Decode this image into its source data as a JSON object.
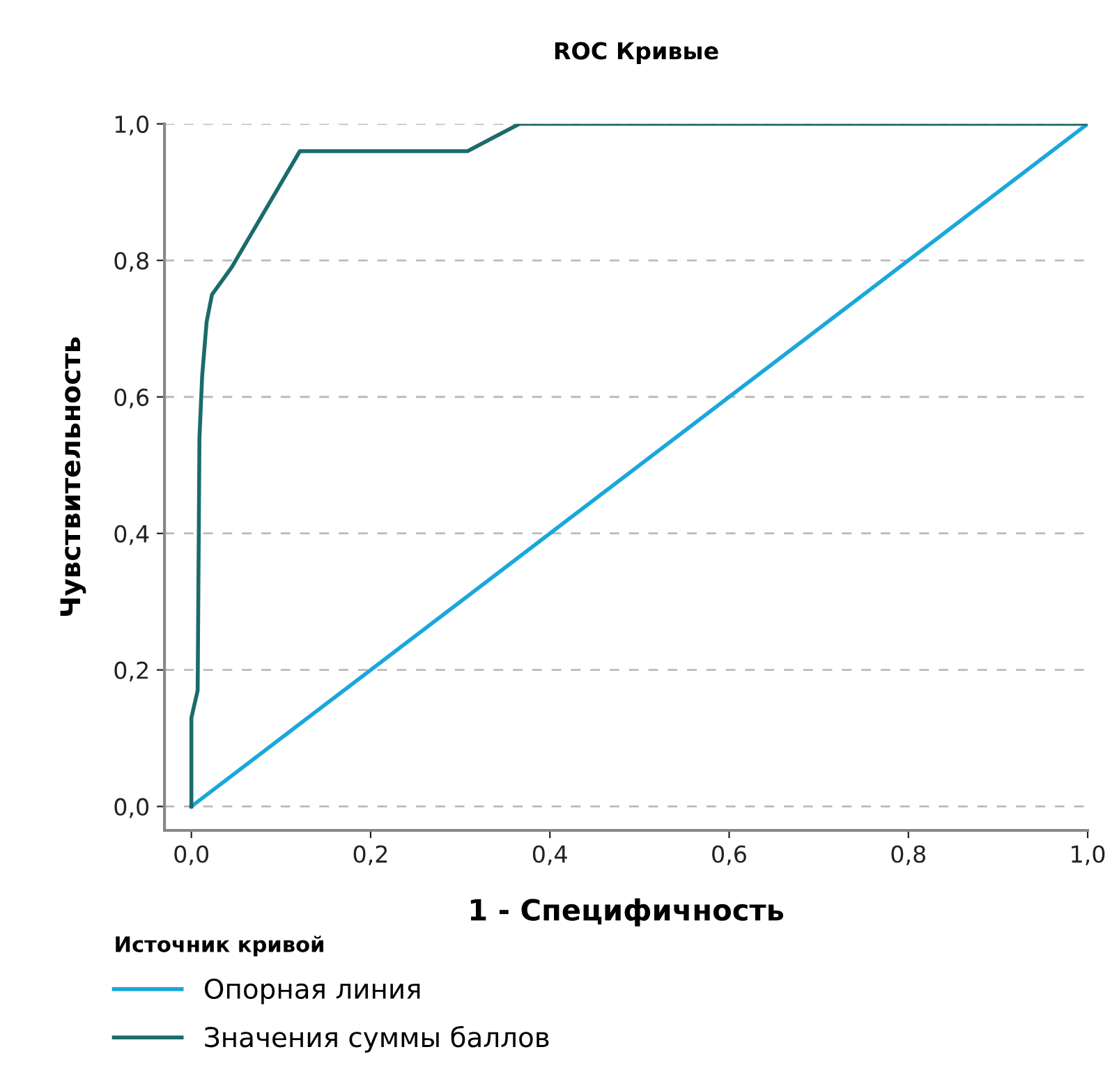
{
  "chart_data": {
    "type": "line",
    "title": "ROC Кривые",
    "xlabel": "1 - Специфичность",
    "ylabel": "Чувствительность",
    "legend_title": "Источник кривой",
    "legend": "bottom left",
    "grid": "y",
    "line_style": "solid",
    "marker": "none",
    "xlim": [
      -0.03,
      1.0
    ],
    "ylim": [
      -0.035,
      1.0
    ],
    "xticks": [
      {
        "value": 0,
        "label": "0,0"
      },
      {
        "value": 0.2,
        "label": "0,2"
      },
      {
        "value": 0.4,
        "label": "0,4"
      },
      {
        "value": 0.6,
        "label": "0,6"
      },
      {
        "value": 0.8,
        "label": "0,8"
      },
      {
        "value": 1,
        "label": "1,0"
      }
    ],
    "yticks": [
      {
        "value": 0,
        "label": "0,0"
      },
      {
        "value": 0.2,
        "label": "0,2"
      },
      {
        "value": 0.4,
        "label": "0,4"
      },
      {
        "value": 0.6,
        "label": "0,6"
      },
      {
        "value": 0.8,
        "label": "0,8"
      },
      {
        "value": 1,
        "label": "1,0"
      }
    ],
    "series": [
      {
        "name": "Опорная линия",
        "color": "#1aa7dc",
        "x": [
          0,
          1
        ],
        "values": [
          0,
          1
        ]
      },
      {
        "name": "Значения суммы баллов",
        "color": "#1b6b6b",
        "x": [
          0,
          0,
          0.007,
          0.009,
          0.012,
          0.017,
          0.023,
          0.045,
          0.121,
          0.308,
          0.366,
          1
        ],
        "values": [
          0,
          0.13,
          0.17,
          0.54,
          0.63,
          0.71,
          0.75,
          0.79,
          0.96,
          0.96,
          1,
          1
        ]
      }
    ]
  }
}
